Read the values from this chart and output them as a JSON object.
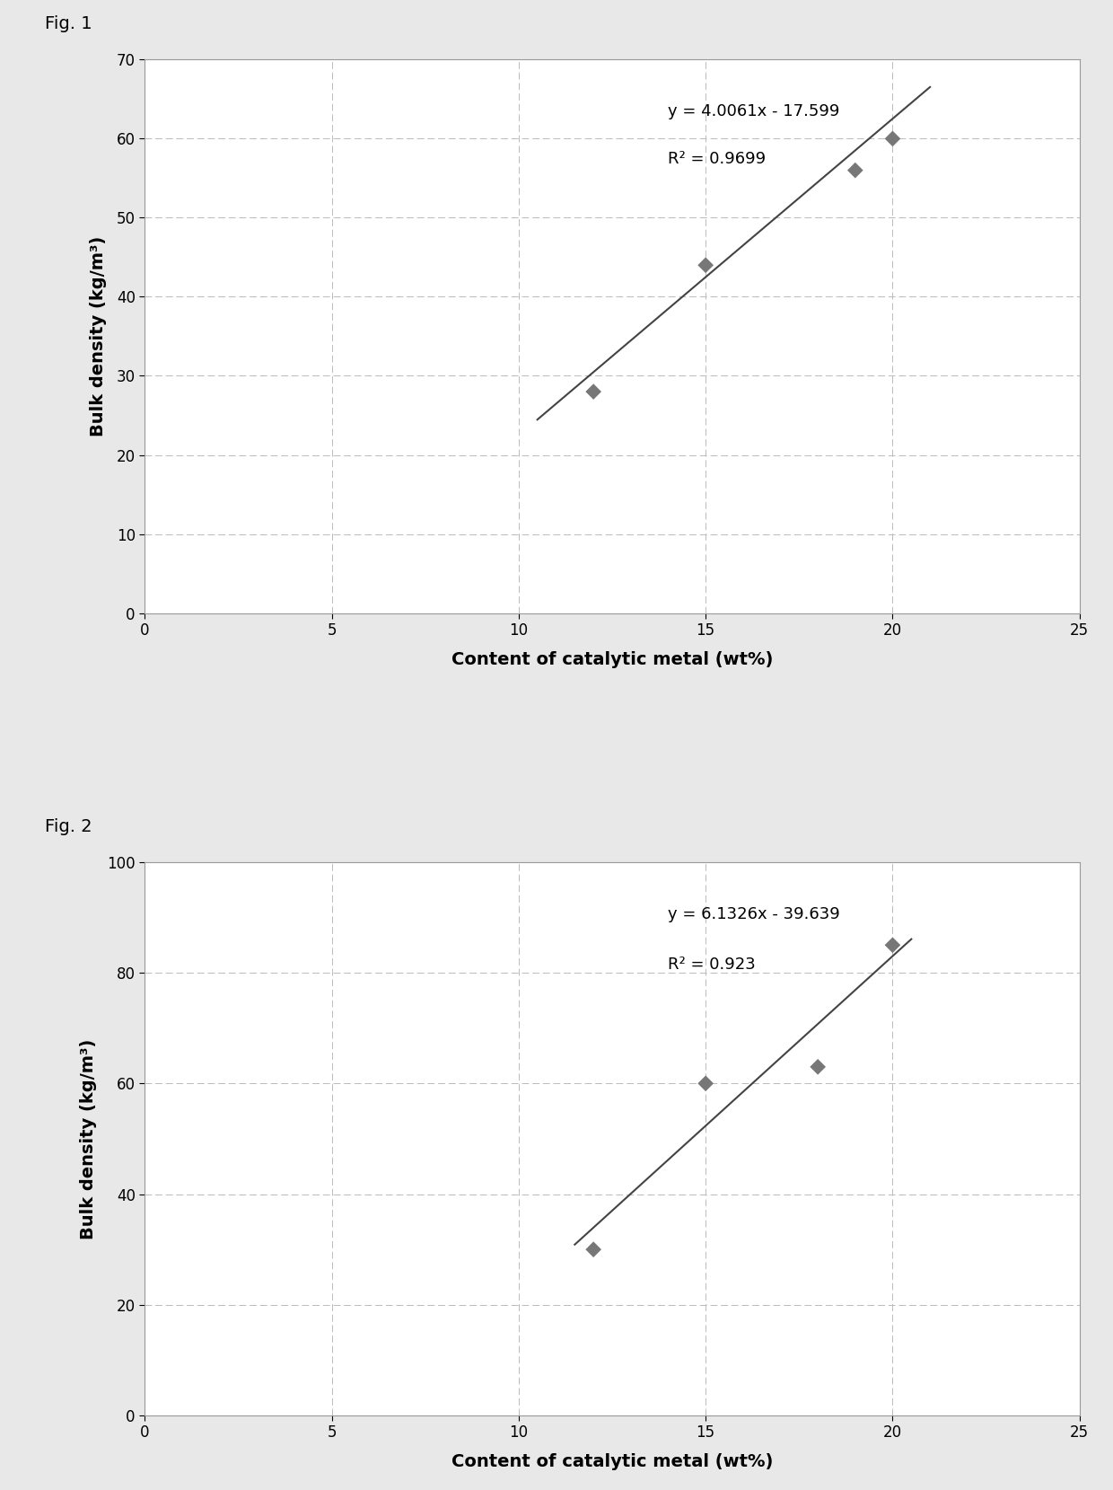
{
  "fig1": {
    "label": "Fig. 1",
    "x_data": [
      12,
      15,
      19,
      20
    ],
    "y_data": [
      28,
      44,
      56,
      60
    ],
    "slope": 4.0061,
    "intercept": -17.599,
    "r_squared": 0.9699,
    "eq_text": "y = 4.0061x - 17.599",
    "r2_text": "R² = 0.9699",
    "xlabel": "Content of catalytic metal (wt%)",
    "ylabel": "Bulk density (kg/m³)",
    "xlim": [
      0,
      25
    ],
    "ylim": [
      0,
      70
    ],
    "xticks": [
      0,
      5,
      10,
      15,
      20,
      25
    ],
    "yticks": [
      0,
      10,
      20,
      30,
      40,
      50,
      60,
      70
    ],
    "line_x_start": 10.5,
    "line_x_end": 21.0,
    "eq_x": 14.0,
    "eq_y": 64.5,
    "r2_x": 14.0,
    "r2_y": 58.5
  },
  "fig2": {
    "label": "Fig. 2",
    "x_data": [
      12,
      15,
      18,
      20
    ],
    "y_data": [
      30,
      60,
      63,
      85
    ],
    "slope": 6.1326,
    "intercept": -39.639,
    "r_squared": 0.923,
    "eq_text": "y = 6.1326x - 39.639",
    "r2_text": "R² = 0.923",
    "xlabel": "Content of catalytic metal (wt%)",
    "ylabel": "Bulk density (kg/m³)",
    "xlim": [
      0,
      25
    ],
    "ylim": [
      0,
      100
    ],
    "xticks": [
      0,
      5,
      10,
      15,
      20,
      25
    ],
    "yticks": [
      0,
      20,
      40,
      60,
      80,
      100
    ],
    "line_x_start": 11.5,
    "line_x_end": 20.5,
    "eq_x": 14.0,
    "eq_y": 92,
    "r2_x": 14.0,
    "r2_y": 83
  },
  "marker_color": "#777777",
  "line_color": "#444444",
  "grid_color": "#bbbbbb",
  "outer_bg_color": "#e8e8e8",
  "plot_bg_color": "#ffffff",
  "border_color": "#999999",
  "label_fontsize": 14,
  "tick_fontsize": 12,
  "eq_fontsize": 13,
  "fig_label_fontsize": 14,
  "marker_size": 9,
  "line_width": 1.5
}
